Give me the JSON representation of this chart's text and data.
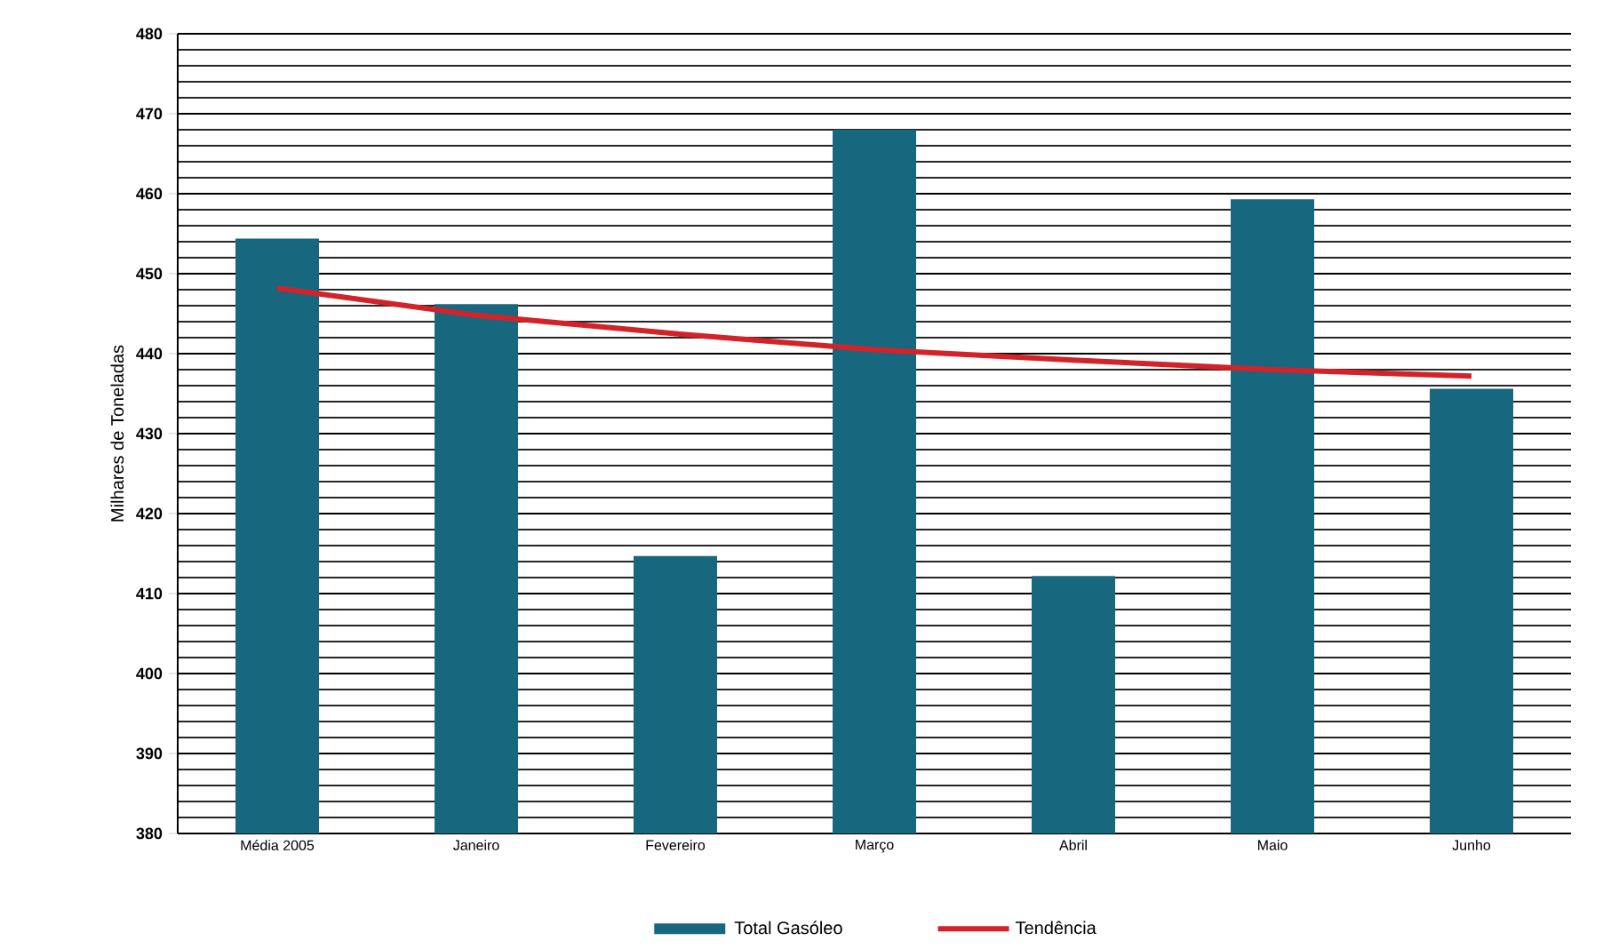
{
  "chart_data": {
    "type": "bar",
    "ylabel": "Milhares de Toneladas",
    "categories": [
      "Média 2005",
      "Janeiro",
      "Fevereiro",
      "Março",
      "Abril",
      "Maio",
      "Junho"
    ],
    "series": [
      {
        "name": "Total Gasóleo",
        "color": "#17677f",
        "values": [
          454.4,
          446.2,
          414.7,
          468,
          412.2,
          459.3,
          435.6
        ]
      },
      {
        "name": "Tendência",
        "type": "line",
        "color": "#d2232a",
        "values": [
          448.2,
          444.8,
          442.5,
          440.5,
          439.2,
          438,
          437.2
        ]
      }
    ],
    "ylim": [
      380,
      480
    ],
    "yticks": [
      380,
      390,
      400,
      410,
      420,
      430,
      440,
      450,
      460,
      470,
      480
    ],
    "grid": "y",
    "legend": "bottom",
    "marker": "none",
    "line_style": "solid"
  }
}
